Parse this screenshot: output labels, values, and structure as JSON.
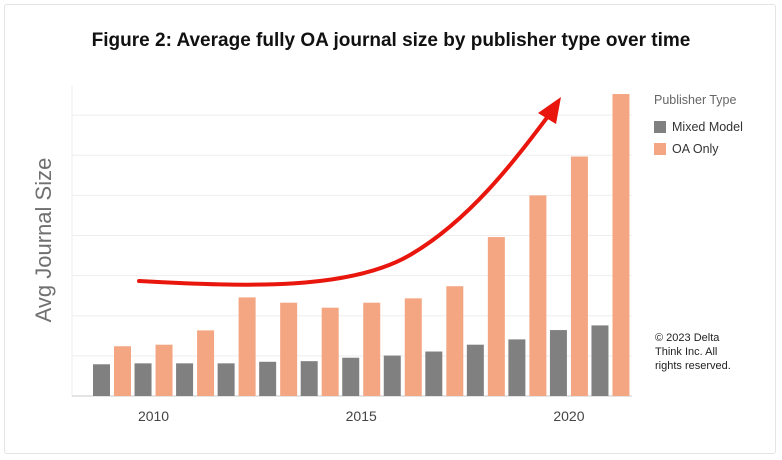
{
  "chart_data": {
    "type": "bar",
    "title": "Figure 2: Average fully OA journal size by publisher type over time",
    "ylabel": "Avg Journal Size",
    "xlabel": "",
    "x": [
      2009,
      2010,
      2011,
      2012,
      2013,
      2014,
      2015,
      2016,
      2017,
      2018,
      2019,
      2020,
      2021
    ],
    "tick_labels": [
      "2010",
      "2015",
      "2020"
    ],
    "ylim": [
      0,
      100
    ],
    "grid": true,
    "legend": {
      "title": "Publisher Type",
      "position": "right"
    },
    "series": [
      {
        "name": "Mixed Model",
        "color": "#808080",
        "values": [
          10.2,
          10.5,
          10.5,
          10.5,
          11.0,
          11.2,
          12.3,
          13.0,
          14.3,
          16.5,
          18.2,
          21.2,
          22.7
        ]
      },
      {
        "name": "OA Only",
        "color": "#f4a682",
        "values": [
          16.0,
          16.5,
          21.1,
          31.7,
          30.0,
          28.4,
          30.0,
          31.4,
          35.3,
          51.1,
          64.5,
          77.0,
          97.1
        ]
      }
    ],
    "annotation": "trend-arrow"
  },
  "copyright": "© 2023 Delta Think Inc. All rights reserved.",
  "colors": {
    "arrow": "#e8160c",
    "grid": "#eeeeee",
    "axis": "#c8c8c8"
  }
}
